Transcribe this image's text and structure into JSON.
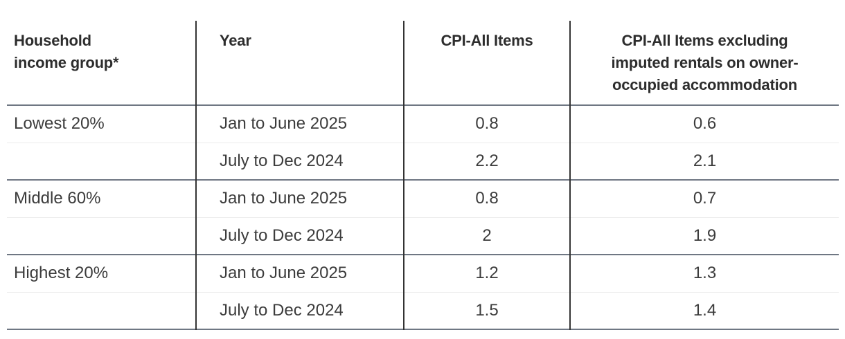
{
  "table": {
    "headers": [
      "Household income group*",
      "Year",
      "CPI-All Items",
      "CPI-All Items excluding imputed rentals on owner-occupied accommodation"
    ],
    "rows": [
      {
        "group": "Lowest 20%",
        "year": "Jan to June 2025",
        "cpi_all": "0.8",
        "cpi_excl": "0.6"
      },
      {
        "group": "",
        "year": "July to Dec 2024",
        "cpi_all": "2.2",
        "cpi_excl": "2.1"
      },
      {
        "group": "Middle 60%",
        "year": "Jan to June 2025",
        "cpi_all": "0.8",
        "cpi_excl": "0.7"
      },
      {
        "group": "",
        "year": "July to Dec 2024",
        "cpi_all": "2",
        "cpi_excl": "1.9"
      },
      {
        "group": "Highest 20%",
        "year": "Jan to June 2025",
        "cpi_all": "1.2",
        "cpi_excl": "1.3"
      },
      {
        "group": "",
        "year": "July to Dec 2024",
        "cpi_all": "1.5",
        "cpi_excl": "1.4"
      }
    ]
  },
  "appearance": {
    "group_divider_color": "#6f7783",
    "column_divider_color": "#333333",
    "row_divider_color": "#ececec",
    "header_text_color": "#2d2d2d",
    "body_text_color": "#3c3c3c",
    "background_color": "#ffffff"
  },
  "chart_data": {
    "type": "table",
    "columns": [
      "Household income group*",
      "Year",
      "CPI-All Items",
      "CPI-All Items excluding imputed rentals on owner-occupied accommodation"
    ],
    "rows": [
      [
        "Lowest 20%",
        "Jan to June 2025",
        0.8,
        0.6
      ],
      [
        "",
        "July to Dec 2024",
        2.2,
        2.1
      ],
      [
        "Middle 60%",
        "Jan to June 2025",
        0.8,
        0.7
      ],
      [
        "",
        "July to Dec 2024",
        2.0,
        1.9
      ],
      [
        "Highest 20%",
        "Jan to June 2025",
        1.2,
        1.3
      ],
      [
        "",
        "July to Dec 2024",
        1.5,
        1.4
      ]
    ]
  }
}
